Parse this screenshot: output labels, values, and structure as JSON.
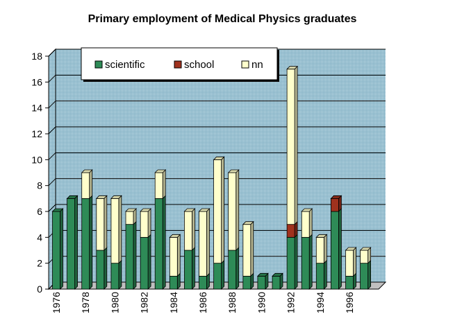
{
  "chart_data": {
    "type": "bar",
    "stacked": true,
    "title": "Primary employment of Medical Physics graduates",
    "xlabel": "",
    "ylabel": "",
    "ylim": [
      0,
      18
    ],
    "yticks": [
      0,
      2,
      4,
      6,
      8,
      10,
      12,
      14,
      16,
      18
    ],
    "categories": [
      1976,
      1977,
      1978,
      1979,
      1980,
      1981,
      1982,
      1983,
      1984,
      1985,
      1986,
      1987,
      1988,
      1989,
      1990,
      1991,
      1992,
      1993,
      1994,
      1995,
      1996,
      1997
    ],
    "xtick_labels_shown": [
      "1976",
      "1978",
      "1980",
      "1982",
      "1984",
      "1986",
      "1988",
      "1990",
      "1992",
      "1994",
      "1996"
    ],
    "series": [
      {
        "name": "scientific",
        "color": "#2e8b57",
        "values": [
          6,
          7,
          7,
          3,
          2,
          5,
          4,
          7,
          1,
          3,
          1,
          2,
          3,
          1,
          1,
          1,
          4,
          4,
          2,
          6,
          1,
          2
        ]
      },
      {
        "name": "school",
        "color": "#a0321e",
        "values": [
          0,
          0,
          0,
          0,
          0,
          0,
          0,
          0,
          0,
          0,
          0,
          0,
          0,
          0,
          0,
          0,
          1,
          0,
          0,
          1,
          0,
          0
        ]
      },
      {
        "name": "nn",
        "color": "#ffffcc",
        "values": [
          0,
          0,
          2,
          4,
          5,
          1,
          2,
          2,
          3,
          3,
          5,
          8,
          6,
          4,
          0,
          0,
          12,
          2,
          2,
          0,
          2,
          1
        ]
      }
    ],
    "legend_position": "top",
    "grid": true,
    "plot_background": "#a9c9d6"
  }
}
